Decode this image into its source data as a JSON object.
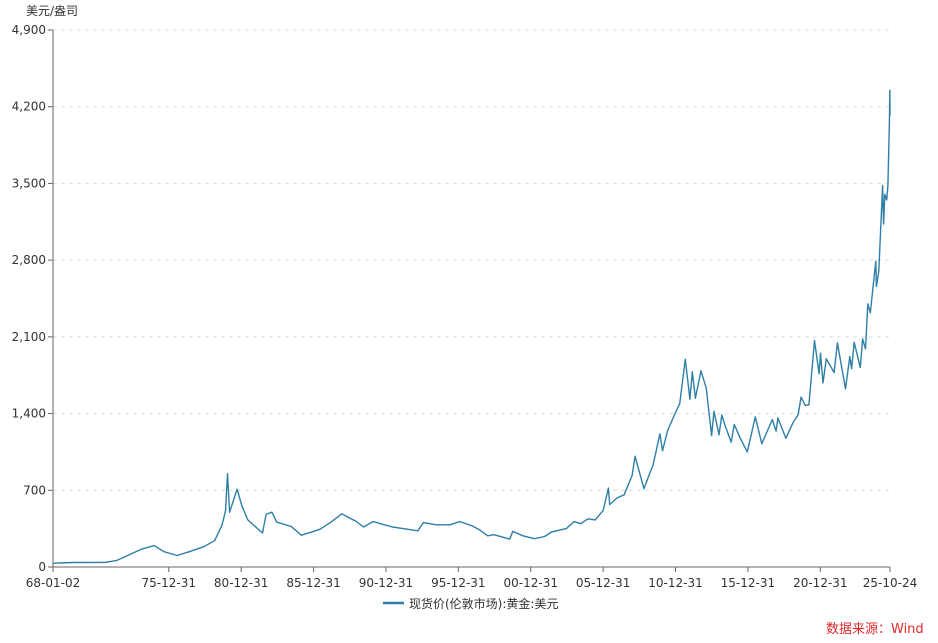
{
  "chart_data": {
    "type": "line",
    "unit_label": "美元/盎司",
    "y_ticks": [
      "0",
      "700",
      "1,400",
      "2,100",
      "2,800",
      "3,500",
      "4,200",
      "4,900"
    ],
    "y_tick_values": [
      0,
      700,
      1400,
      2100,
      2800,
      3500,
      4200,
      4900
    ],
    "ylim": [
      0,
      4900
    ],
    "x_ticks": [
      "68-01-02",
      "75-12-31",
      "80-12-31",
      "85-12-31",
      "90-12-31",
      "95-12-31",
      "00-12-31",
      "05-12-31",
      "10-12-31",
      "15-12-31",
      "20-12-31",
      "25-10-24"
    ],
    "x_tick_values": [
      "1968-01-02",
      "1975-12-31",
      "1980-12-31",
      "1985-12-31",
      "1990-12-31",
      "1995-12-31",
      "2000-12-31",
      "2005-12-31",
      "2010-12-31",
      "2015-12-31",
      "2020-12-31",
      "2025-10-24"
    ],
    "xlim": [
      "1968-01-02",
      "2025-10-24"
    ],
    "grid": "horizontal dashed",
    "legend_position": "bottom-center",
    "series": [
      {
        "name": "现货价(伦敦市场):黄金:美元",
        "color": "#2e7fa6",
        "points": [
          [
            "1968-01-02",
            35
          ],
          [
            "1969-06-01",
            41
          ],
          [
            "1971-08-01",
            42
          ],
          [
            "1972-06-01",
            60
          ],
          [
            "1973-06-01",
            120
          ],
          [
            "1974-03-01",
            165
          ],
          [
            "1974-12-30",
            195
          ],
          [
            "1975-09-01",
            140
          ],
          [
            "1976-08-01",
            105
          ],
          [
            "1977-06-01",
            140
          ],
          [
            "1978-06-01",
            185
          ],
          [
            "1979-03-01",
            240
          ],
          [
            "1979-09-01",
            380
          ],
          [
            "1979-12-01",
            510
          ],
          [
            "1980-01-21",
            850
          ],
          [
            "1980-03-15",
            500
          ],
          [
            "1980-09-20",
            710
          ],
          [
            "1981-01-15",
            560
          ],
          [
            "1981-06-15",
            430
          ],
          [
            "1982-06-21",
            310
          ],
          [
            "1982-09-20",
            480
          ],
          [
            "1983-02-15",
            500
          ],
          [
            "1983-06-15",
            410
          ],
          [
            "1984-06-15",
            370
          ],
          [
            "1985-02-25",
            290
          ],
          [
            "1985-12-31",
            325
          ],
          [
            "1986-06-15",
            345
          ],
          [
            "1987-03-15",
            410
          ],
          [
            "1987-12-15",
            485
          ],
          [
            "1988-06-15",
            450
          ],
          [
            "1988-12-15",
            415
          ],
          [
            "1989-06-15",
            365
          ],
          [
            "1990-02-15",
            415
          ],
          [
            "1990-08-15",
            395
          ],
          [
            "1991-06-15",
            365
          ],
          [
            "1992-06-15",
            345
          ],
          [
            "1993-03-15",
            330
          ],
          [
            "1993-08-02",
            405
          ],
          [
            "1994-06-15",
            385
          ],
          [
            "1995-06-15",
            385
          ],
          [
            "1996-02-02",
            415
          ],
          [
            "1996-12-15",
            375
          ],
          [
            "1997-06-15",
            340
          ],
          [
            "1998-01-09",
            285
          ],
          [
            "1998-06-15",
            295
          ],
          [
            "1999-07-20",
            255
          ],
          [
            "1999-10-05",
            325
          ],
          [
            "2000-06-15",
            285
          ],
          [
            "2001-04-02",
            258
          ],
          [
            "2001-12-15",
            278
          ],
          [
            "2002-06-15",
            320
          ],
          [
            "2003-06-15",
            350
          ],
          [
            "2003-12-31",
            415
          ],
          [
            "2004-06-15",
            395
          ],
          [
            "2004-12-15",
            440
          ],
          [
            "2005-06-15",
            430
          ],
          [
            "2005-12-31",
            515
          ],
          [
            "2006-05-12",
            720
          ],
          [
            "2006-06-14",
            570
          ],
          [
            "2006-12-15",
            630
          ],
          [
            "2007-06-15",
            660
          ],
          [
            "2007-12-31",
            835
          ],
          [
            "2008-03-17",
            1010
          ],
          [
            "2008-10-24",
            715
          ],
          [
            "2009-06-15",
            935
          ],
          [
            "2009-12-02",
            1215
          ],
          [
            "2010-02-05",
            1060
          ],
          [
            "2010-06-15",
            1245
          ],
          [
            "2010-12-31",
            1410
          ],
          [
            "2011-04-15",
            1490
          ],
          [
            "2011-09-05",
            1895
          ],
          [
            "2011-12-29",
            1530
          ],
          [
            "2012-02-28",
            1780
          ],
          [
            "2012-05-16",
            1540
          ],
          [
            "2012-10-05",
            1790
          ],
          [
            "2013-02-15",
            1630
          ],
          [
            "2013-06-28",
            1200
          ],
          [
            "2013-08-28",
            1420
          ],
          [
            "2013-12-31",
            1205
          ],
          [
            "2014-03-14",
            1385
          ],
          [
            "2014-06-15",
            1280
          ],
          [
            "2014-11-05",
            1140
          ],
          [
            "2015-01-22",
            1300
          ],
          [
            "2015-06-15",
            1180
          ],
          [
            "2015-12-17",
            1050
          ],
          [
            "2016-07-06",
            1370
          ],
          [
            "2016-12-15",
            1125
          ],
          [
            "2017-09-08",
            1345
          ],
          [
            "2017-12-12",
            1240
          ],
          [
            "2018-01-25",
            1360
          ],
          [
            "2018-08-16",
            1175
          ],
          [
            "2019-02-15",
            1320
          ],
          [
            "2019-06-20",
            1390
          ],
          [
            "2019-09-04",
            1550
          ],
          [
            "2019-12-15",
            1475
          ],
          [
            "2020-03-19",
            1480
          ],
          [
            "2020-08-06",
            2065
          ],
          [
            "2020-11-30",
            1765
          ],
          [
            "2021-01-05",
            1950
          ],
          [
            "2021-03-08",
            1680
          ],
          [
            "2021-06-01",
            1900
          ],
          [
            "2021-12-15",
            1775
          ],
          [
            "2022-03-08",
            2045
          ],
          [
            "2022-09-28",
            1625
          ],
          [
            "2023-01-15",
            1920
          ],
          [
            "2023-02-28",
            1810
          ],
          [
            "2023-05-04",
            2050
          ],
          [
            "2023-10-05",
            1820
          ],
          [
            "2023-12-04",
            2080
          ],
          [
            "2024-02-14",
            1990
          ],
          [
            "2024-04-12",
            2400
          ],
          [
            "2024-06-15",
            2320
          ],
          [
            "2024-10-30",
            2790
          ],
          [
            "2024-11-14",
            2560
          ],
          [
            "2025-01-15",
            2700
          ],
          [
            "2025-04-21",
            3480
          ],
          [
            "2025-05-15",
            3130
          ],
          [
            "2025-06-15",
            3400
          ],
          [
            "2025-08-01",
            3350
          ],
          [
            "2025-09-01",
            3480
          ],
          [
            "2025-10-08",
            4050
          ],
          [
            "2025-10-20",
            4350
          ],
          [
            "2025-10-24",
            4120
          ]
        ]
      }
    ]
  },
  "footer": {
    "source": "数据来源：Wind"
  }
}
